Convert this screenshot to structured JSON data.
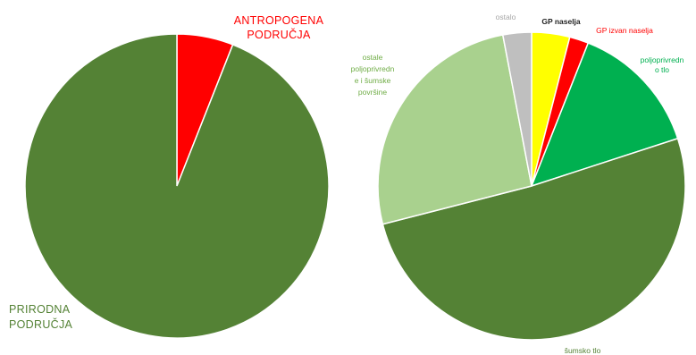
{
  "chart_data": [
    {
      "type": "pie",
      "title": "",
      "slices": [
        {
          "label": "ANTROPOGENA PODRUČJA",
          "label_lines": [
            "ANTROPOGENA",
            "PODRUČJA"
          ],
          "value": 6,
          "color": "#ff0000",
          "label_color": "#ff0000"
        },
        {
          "label": "PRIRODNA PODRUČJA",
          "label_lines": [
            "PRIRODNA",
            "PODRUČJA"
          ],
          "value": 94,
          "color": "#548235",
          "label_color": "#548235"
        }
      ],
      "start": "12 o'clock, clockwise"
    },
    {
      "type": "pie",
      "title": "",
      "slices": [
        {
          "label": "GP naselja",
          "label_lines": [
            "GP naselja"
          ],
          "value": 4,
          "color": "#ffff00",
          "label_color": "#222222"
        },
        {
          "label": "GP izvan naselja",
          "label_lines": [
            "GP izvan naselja"
          ],
          "value": 2,
          "color": "#ff0000",
          "label_color": "#ff0000"
        },
        {
          "label": "poljoprivredno tlo",
          "label_lines": [
            "poljoprivredn",
            "o tlo"
          ],
          "value": 14,
          "color": "#00b050",
          "label_color": "#00b050"
        },
        {
          "label": "šumsko tlo",
          "label_lines": [
            "šumsko tlo"
          ],
          "value": 51,
          "color": "#548235",
          "label_color": "#548235"
        },
        {
          "label": "ostale poljoprivredne i šumske površine",
          "label_lines": [
            "ostale",
            "poljoprivredn",
            "e i šumske",
            "površine"
          ],
          "value": 26,
          "color": "#a9d18e",
          "label_color": "#70ad47"
        },
        {
          "label": "ostalo",
          "label_lines": [
            "ostalo"
          ],
          "value": 3,
          "color": "#bfbfbf",
          "label_color": "#a6a6a6"
        }
      ],
      "start": "12 o'clock, clockwise"
    }
  ]
}
